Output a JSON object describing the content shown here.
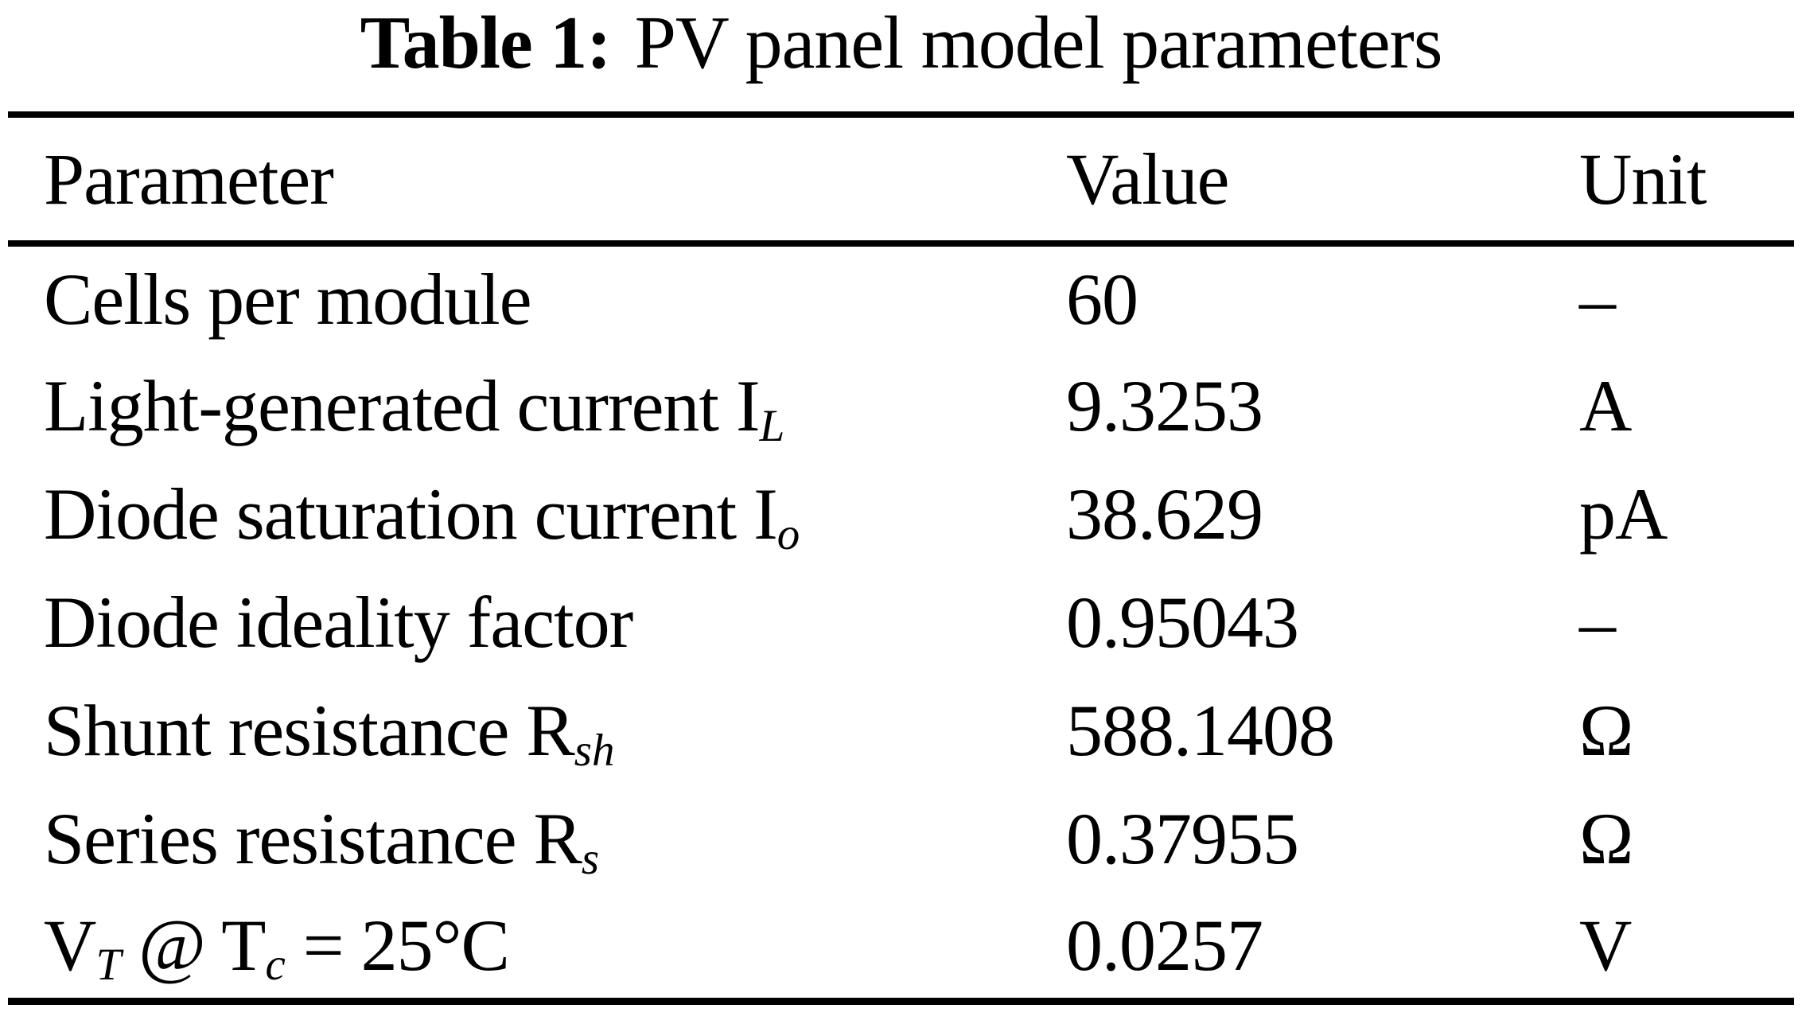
{
  "caption": {
    "label": "Table 1:",
    "title": "PV panel model parameters"
  },
  "table": {
    "columns": [
      "Parameter",
      "Value",
      "Unit"
    ],
    "rows": [
      {
        "parameter": [
          {
            "t": "Cells per module"
          }
        ],
        "value": "60",
        "unit": "–"
      },
      {
        "parameter": [
          {
            "t": "Light-generated current I"
          },
          {
            "t": "L",
            "sub": true
          }
        ],
        "value": "9.3253",
        "unit": "A"
      },
      {
        "parameter": [
          {
            "t": "Diode saturation current I"
          },
          {
            "t": "o",
            "sub": true
          }
        ],
        "value": "38.629",
        "unit": "pA"
      },
      {
        "parameter": [
          {
            "t": "Diode ideality factor"
          }
        ],
        "value": "0.95043",
        "unit": "–"
      },
      {
        "parameter": [
          {
            "t": "Shunt resistance R"
          },
          {
            "t": "sh",
            "sub": true
          }
        ],
        "value": "588.1408",
        "unit": "Ω"
      },
      {
        "parameter": [
          {
            "t": "Series resistance R"
          },
          {
            "t": "s",
            "sub": true
          }
        ],
        "value": "0.37955",
        "unit": "Ω"
      },
      {
        "parameter": [
          {
            "t": "V"
          },
          {
            "t": "T",
            "sub": true
          },
          {
            "t": " @ T"
          },
          {
            "t": "c",
            "sub": true
          },
          {
            "t": " = 25°C"
          }
        ],
        "value": "0.0257",
        "unit": "V"
      }
    ]
  },
  "colors": {
    "text": "#000000",
    "background": "#ffffff",
    "rule": "#000000"
  }
}
